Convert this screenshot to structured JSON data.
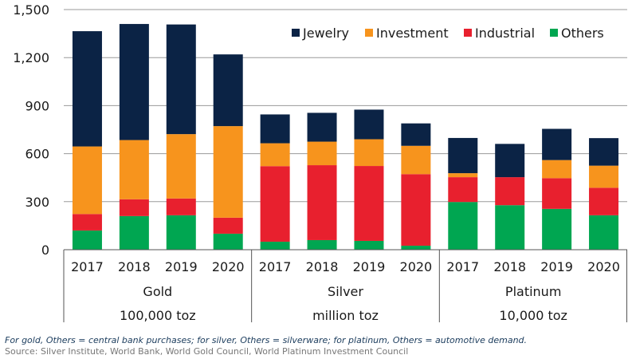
{
  "chart_data": {
    "type": "bar",
    "stacked": true,
    "title": "",
    "xlabel": "",
    "ylabel": "",
    "ylim": [
      0,
      1500
    ],
    "yticks": [
      0,
      300,
      600,
      900,
      1200,
      1500
    ],
    "ytick_labels": [
      "0",
      "300",
      "600",
      "900",
      "1,200",
      "1,500"
    ],
    "grid": true,
    "legend_position": "top-right",
    "groups": [
      {
        "metal": "Gold",
        "unit": "100,000 toz"
      },
      {
        "metal": "Silver",
        "unit": "million toz"
      },
      {
        "metal": "Platinum",
        "unit": "10,000 toz"
      }
    ],
    "categories": [
      "2017",
      "2018",
      "2019",
      "2020",
      "2017",
      "2018",
      "2019",
      "2020",
      "2017",
      "2018",
      "2019",
      "2020"
    ],
    "series": [
      {
        "name": "Others",
        "color": "#00a651",
        "values": [
          120,
          210,
          215,
          100,
          50,
          60,
          55,
          25,
          298,
          278,
          255,
          215
        ]
      },
      {
        "name": "Industrial",
        "color": "#e8202e",
        "values": [
          103,
          105,
          105,
          100,
          472,
          468,
          468,
          447,
          155,
          175,
          192,
          172
        ]
      },
      {
        "name": "Investment",
        "color": "#f7941d",
        "values": [
          422,
          370,
          402,
          572,
          143,
          147,
          167,
          177,
          25,
          0,
          113,
          138
        ]
      },
      {
        "name": "Jewelry",
        "color": "#0b2345",
        "values": [
          720,
          725,
          685,
          448,
          180,
          180,
          185,
          140,
          220,
          208,
          195,
          172
        ]
      }
    ],
    "legend_order": [
      "Jewelry",
      "Investment",
      "Industrial",
      "Others"
    ]
  },
  "notes": {
    "footnote": "For gold, Others = central bank purchases; for silver, Others = silverware; for platinum, Others = automotive demand.",
    "source": "Source: Silver Institute, World Bank, World Gold Council, World Platinum Investment Council"
  }
}
